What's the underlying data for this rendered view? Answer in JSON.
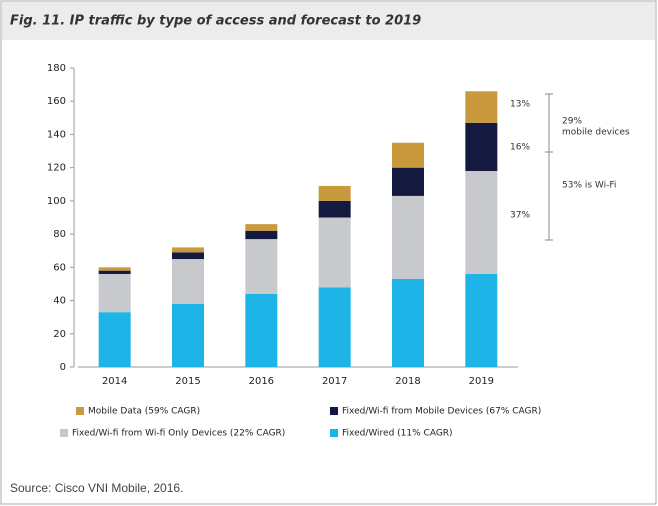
{
  "chart_data": {
    "type": "stacked_bar",
    "title": "Fig. 11. IP traffic by type of access and forecast to 2019",
    "source": "Source: Cisco VNI Mobile, 2016.",
    "categories": [
      "2014",
      "2015",
      "2016",
      "2017",
      "2018",
      "2019"
    ],
    "series": [
      {
        "name": "Mobile Data (59% CAGR)",
        "color": "#c9993d",
        "values": [
          2,
          3,
          4,
          9,
          15,
          19
        ]
      },
      {
        "name": "Fixed/Wi-fi from Mobile Devices (67% CAGR)",
        "color": "#14193f",
        "values": [
          2,
          4,
          5,
          10,
          17,
          29
        ]
      },
      {
        "name": "Fixed/Wi-fi from Wi-fi Only Devices (22% CAGR)",
        "color": "#c8c9cc",
        "values": [
          23,
          27,
          33,
          42,
          50,
          62
        ]
      },
      {
        "name": "Fixed/Wired (11% CAGR)",
        "color": "#1eb4e8",
        "values": [
          33,
          38,
          44,
          48,
          53,
          56
        ]
      }
    ],
    "ylim": [
      0,
      180
    ],
    "yticks": [
      0,
      20,
      40,
      60,
      80,
      100,
      120,
      140,
      160,
      180
    ],
    "annotations": [
      "13%",
      "16%",
      "37%",
      "29%",
      "mobile devices",
      "53% is Wi-Fi"
    ]
  }
}
